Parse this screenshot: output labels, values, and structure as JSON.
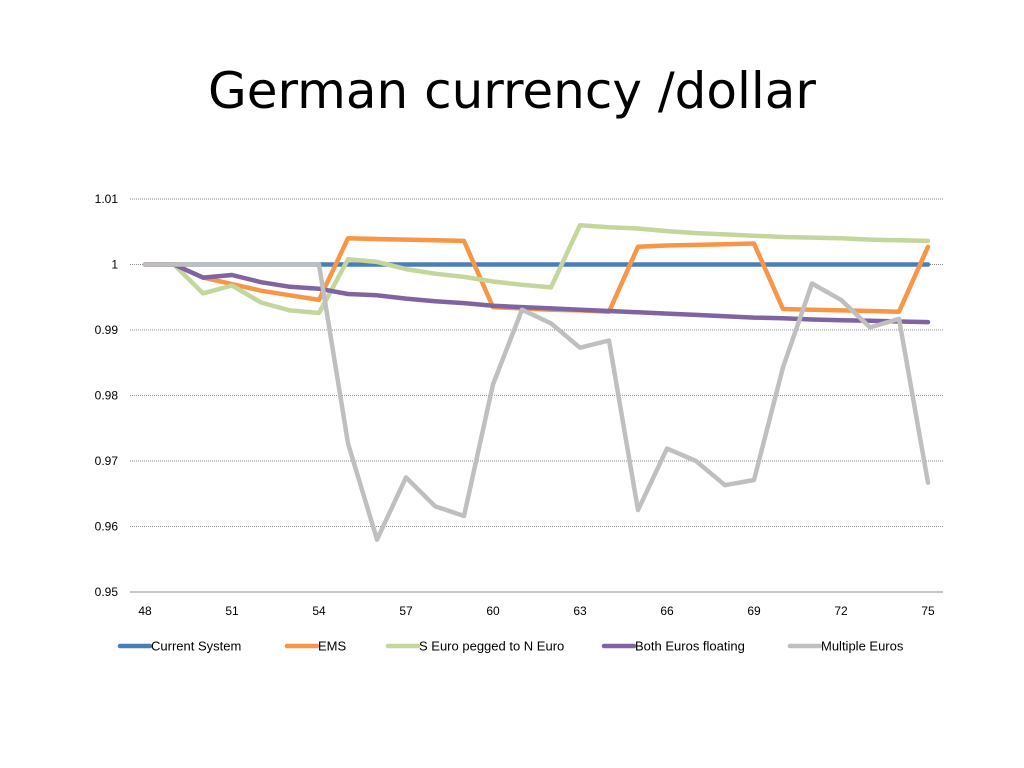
{
  "slide": {
    "title": "German currency /dollar"
  },
  "chart_data": {
    "type": "line",
    "title": "",
    "xlabel": "",
    "ylabel": "",
    "x": [
      48,
      49,
      50,
      51,
      52,
      53,
      54,
      55,
      56,
      57,
      58,
      59,
      60,
      61,
      62,
      63,
      64,
      65,
      66,
      67,
      68,
      69,
      70,
      71,
      72,
      73,
      74,
      75
    ],
    "x_ticks": [
      "48",
      "51",
      "54",
      "57",
      "60",
      "63",
      "66",
      "69",
      "72",
      "75"
    ],
    "y_ticks": [
      "0.95",
      "0.96",
      "0.97",
      "0.98",
      "0.99",
      "1",
      "1.01"
    ],
    "ylim": [
      0.95,
      1.01
    ],
    "grid": true,
    "legend_position": "bottom",
    "series": [
      {
        "name": "Current System",
        "color": "#4a7ebb",
        "values": [
          1,
          1,
          1,
          1,
          1,
          1,
          1,
          1,
          1,
          1,
          1,
          1,
          1,
          1,
          1,
          1,
          1,
          1,
          1,
          1,
          1,
          1,
          1,
          1,
          1,
          1,
          1,
          1
        ]
      },
      {
        "name": "EMS",
        "color": "#f79646",
        "values": [
          1,
          1,
          0.998,
          0.997,
          0.996,
          0.9953,
          0.9946,
          1.004,
          1.0039,
          1.0038,
          1.0037,
          1.0036,
          0.9935,
          0.9933,
          0.9931,
          0.993,
          0.9928,
          1.0027,
          1.0029,
          1.003,
          1.0031,
          1.0032,
          0.9932,
          0.9931,
          0.993,
          0.9929,
          0.9928,
          1.0027
        ]
      },
      {
        "name": "S Euro pegged to N Euro",
        "color": "#c3d69b",
        "values": [
          1,
          1,
          0.9956,
          0.9968,
          0.9942,
          0.993,
          0.9926,
          1.0008,
          1.0004,
          0.9993,
          0.9986,
          0.9981,
          0.9974,
          0.9969,
          0.9965,
          1.006,
          1.0057,
          1.0055,
          1.0051,
          1.0048,
          1.0046,
          1.0044,
          1.0042,
          1.0041,
          1.004,
          1.0038,
          1.0037,
          1.0036
        ]
      },
      {
        "name": "Both Euros floating",
        "color": "#8064a2",
        "values": [
          1,
          1,
          0.998,
          0.9984,
          0.9973,
          0.9966,
          0.9963,
          0.9955,
          0.9953,
          0.9948,
          0.9944,
          0.9941,
          0.9937,
          0.9935,
          0.9933,
          0.9931,
          0.9929,
          0.9927,
          0.9925,
          0.9923,
          0.9921,
          0.9919,
          0.9918,
          0.9916,
          0.9915,
          0.9914,
          0.9913,
          0.9912
        ]
      },
      {
        "name": "Multiple Euros",
        "color": "#bfbfbf",
        "values": [
          1,
          1,
          1,
          1,
          1,
          1,
          1,
          0.9727,
          0.958,
          0.9675,
          0.9631,
          0.9616,
          0.9817,
          0.9931,
          0.991,
          0.9873,
          0.9884,
          0.9625,
          0.9719,
          0.97,
          0.9663,
          0.9671,
          0.9843,
          0.9971,
          0.9946,
          0.9904,
          0.9917,
          0.9667
        ]
      }
    ]
  }
}
